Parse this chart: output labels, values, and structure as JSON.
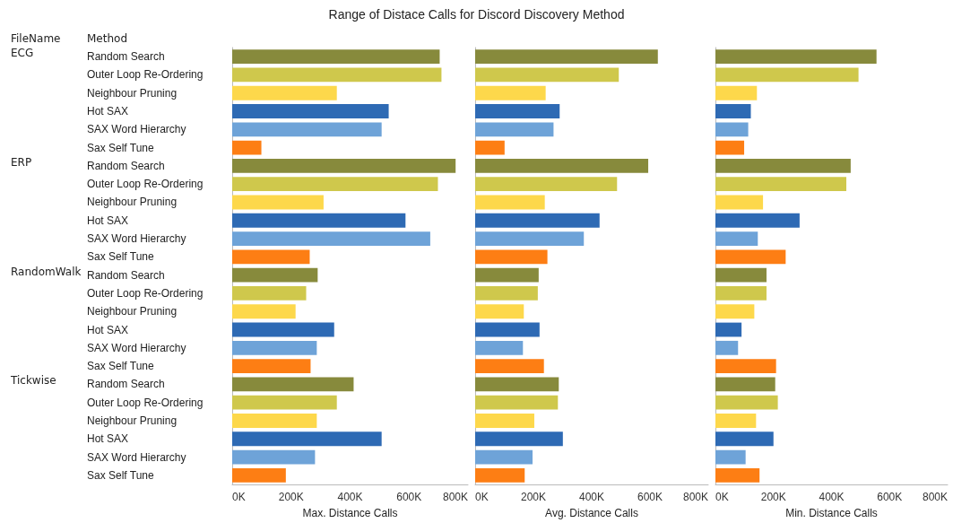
{
  "chart_data": [
    {
      "type": "bar",
      "title": "Range of Distace Calls for Discord Discovery Method",
      "orientation": "horizontal",
      "xlabel": "Max. Distance Calls",
      "annotations": [
        "FileName",
        "Method",
        "ECG",
        "ERP",
        "RandomWalk",
        "Tickwise"
      ],
      "categories": [
        "Random Search",
        "Outer Loop Re-Ordering",
        "Neighbour Pruning",
        "Hot SAX",
        "SAX Word Hierarchy",
        "Sax Self Tune",
        "Random Search",
        "Outer Loop Re-Ordering",
        "Neighbour Pruning",
        "Hot SAX",
        "SAX Word Hierarchy",
        "Sax Self Tune",
        "Random Search",
        "Outer Loop Re-Ordering",
        "Neighbour Pruning",
        "Hot SAX",
        "SAX Word Hierarchy",
        "Sax Self Tune",
        "Random Search",
        "Outer Loop Re-Ordering",
        "Neighbour Pruning",
        "Hot SAX",
        "SAX Word Hierarchy",
        "Sax Self Tune"
      ],
      "values": [
        704000,
        710000,
        355000,
        531000,
        507000,
        99000,
        758000,
        698000,
        310000,
        588000,
        672000,
        263000,
        290000,
        251000,
        215000,
        346000,
        287000,
        266000,
        412000,
        355000,
        287000,
        507000,
        281000,
        182000
      ],
      "colors": [
        "#878a3c",
        "#cfc84c",
        "#fdd84b",
        "#2e6ab4",
        "#6ea3d8",
        "#fd7e14",
        "#878a3c",
        "#cfc84c",
        "#fdd84b",
        "#2e6ab4",
        "#6ea3d8",
        "#fd7e14",
        "#878a3c",
        "#cfc84c",
        "#fdd84b",
        "#2e6ab4",
        "#6ea3d8",
        "#fd7e14",
        "#878a3c",
        "#cfc84c",
        "#fdd84b",
        "#2e6ab4",
        "#6ea3d8",
        "#fd7e14"
      ],
      "xlim": [
        0,
        800000
      ],
      "xticks": [
        {
          "value": 0,
          "label": "0K"
        },
        {
          "value": 200000,
          "label": "200K"
        },
        {
          "value": 400000,
          "label": "400K"
        },
        {
          "value": 600000,
          "label": "600K"
        },
        {
          "value": 800000,
          "label": "800K"
        }
      ]
    },
    {
      "type": "bar",
      "orientation": "horizontal",
      "xlabel": "Avg. Distance Calls",
      "tick_labels": "x",
      "categories": [
        null,
        null,
        null,
        null,
        null,
        null,
        null,
        null,
        null,
        null,
        null,
        null,
        null,
        null,
        null,
        null,
        null,
        null,
        null,
        null,
        null,
        null,
        null,
        null
      ],
      "values": [
        627000,
        493000,
        242000,
        290000,
        269000,
        101000,
        594000,
        487000,
        239000,
        427000,
        373000,
        248000,
        218000,
        215000,
        167000,
        221000,
        164000,
        236000,
        287000,
        284000,
        203000,
        301000,
        197000,
        170000
      ],
      "colors": [
        "#878a3c",
        "#cfc84c",
        "#fdd84b",
        "#2e6ab4",
        "#6ea3d8",
        "#fd7e14",
        "#878a3c",
        "#cfc84c",
        "#fdd84b",
        "#2e6ab4",
        "#6ea3d8",
        "#fd7e14",
        "#878a3c",
        "#cfc84c",
        "#fdd84b",
        "#2e6ab4",
        "#6ea3d8",
        "#fd7e14",
        "#878a3c",
        "#cfc84c",
        "#fdd84b",
        "#2e6ab4",
        "#6ea3d8",
        "#fd7e14"
      ],
      "xlim": [
        0,
        800000
      ],
      "xticks": [
        {
          "value": 0,
          "label": "0K"
        },
        {
          "value": 200000,
          "label": "200K"
        },
        {
          "value": 400000,
          "label": "400K"
        },
        {
          "value": 600000,
          "label": "600K"
        },
        {
          "value": 800000,
          "label": "800K"
        }
      ]
    },
    {
      "type": "bar",
      "orientation": "horizontal",
      "xlabel": "Min. Distance Calls",
      "tick_labels": "x",
      "categories": [
        null,
        null,
        null,
        null,
        null,
        null,
        null,
        null,
        null,
        null,
        null,
        null,
        null,
        null,
        null,
        null,
        null,
        null,
        null,
        null,
        null,
        null,
        null,
        null
      ],
      "values": [
        555000,
        493000,
        143000,
        122000,
        113000,
        99000,
        466000,
        451000,
        164000,
        290000,
        146000,
        242000,
        176000,
        176000,
        134000,
        90000,
        78000,
        209000,
        206000,
        215000,
        140000,
        200000,
        104000,
        152000
      ],
      "colors": [
        "#878a3c",
        "#cfc84c",
        "#fdd84b",
        "#2e6ab4",
        "#6ea3d8",
        "#fd7e14",
        "#878a3c",
        "#cfc84c",
        "#fdd84b",
        "#2e6ab4",
        "#6ea3d8",
        "#fd7e14",
        "#878a3c",
        "#cfc84c",
        "#fdd84b",
        "#2e6ab4",
        "#6ea3d8",
        "#fd7e14",
        "#878a3c",
        "#cfc84c",
        "#fdd84b",
        "#2e6ab4",
        "#6ea3d8",
        "#fd7e14"
      ],
      "xlim": [
        0,
        800000
      ],
      "xticks": [
        {
          "value": 0,
          "label": "0K"
        },
        {
          "value": 200000,
          "label": "200K"
        },
        {
          "value": 400000,
          "label": "400K"
        },
        {
          "value": 600000,
          "label": "600K"
        },
        {
          "value": 800000,
          "label": "800K"
        }
      ]
    }
  ]
}
